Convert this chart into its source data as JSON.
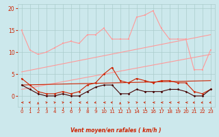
{
  "background_color": "#cce8ec",
  "grid_color": "#aacccc",
  "xlabel": "Vent moyen/en rafales ( km/h )",
  "ylim": [
    -2.5,
    21
  ],
  "yticks": [
    0,
    5,
    10,
    15,
    20
  ],
  "xlim": [
    -0.5,
    23.5
  ],
  "xticks": [
    0,
    1,
    2,
    3,
    4,
    5,
    6,
    7,
    8,
    9,
    10,
    11,
    12,
    13,
    14,
    15,
    16,
    17,
    18,
    19,
    20,
    21,
    22,
    23
  ],
  "light_salmon": "#ff9999",
  "dark_red": "#cc2200",
  "very_dark_red": "#440000",
  "rafales_y": [
    15.0,
    10.5,
    9.5,
    10.0,
    11.0,
    12.0,
    12.5,
    12.0,
    14.0,
    14.0,
    15.5,
    13.0,
    13.0,
    13.0,
    18.0,
    18.5,
    19.5,
    15.5,
    13.0,
    13.0,
    13.0,
    6.0,
    6.0,
    10.5
  ],
  "trend1_x": [
    0,
    23
  ],
  "trend1_y": [
    5.5,
    14.0
  ],
  "trend2_x": [
    0,
    23
  ],
  "trend2_y": [
    1.5,
    9.5
  ],
  "moyen_y": [
    4.0,
    2.5,
    1.0,
    0.5,
    0.5,
    1.0,
    0.5,
    1.0,
    2.5,
    3.0,
    5.0,
    6.5,
    3.5,
    3.0,
    4.0,
    3.5,
    3.0,
    3.5,
    3.5,
    3.0,
    3.0,
    1.0,
    0.5,
    1.5
  ],
  "trend3_x": [
    0,
    23
  ],
  "trend3_y": [
    2.5,
    3.5
  ],
  "base_y": [
    2.5,
    1.5,
    0.5,
    0.0,
    0.0,
    0.5,
    0.0,
    0.0,
    1.0,
    2.0,
    2.5,
    2.5,
    0.5,
    0.5,
    1.5,
    1.0,
    1.0,
    1.0,
    1.5,
    1.5,
    1.0,
    0.0,
    0.0,
    1.5
  ],
  "x_vals": [
    0,
    1,
    2,
    3,
    4,
    5,
    6,
    7,
    8,
    9,
    10,
    11,
    12,
    13,
    14,
    15,
    16,
    17,
    18,
    19,
    20,
    21,
    22,
    23
  ],
  "arrow_angles_deg": [
    180,
    135,
    90,
    45,
    45,
    45,
    135,
    180,
    225,
    225,
    180,
    135,
    90,
    45,
    45,
    135,
    180,
    180,
    180,
    180,
    180,
    225,
    225,
    225
  ]
}
